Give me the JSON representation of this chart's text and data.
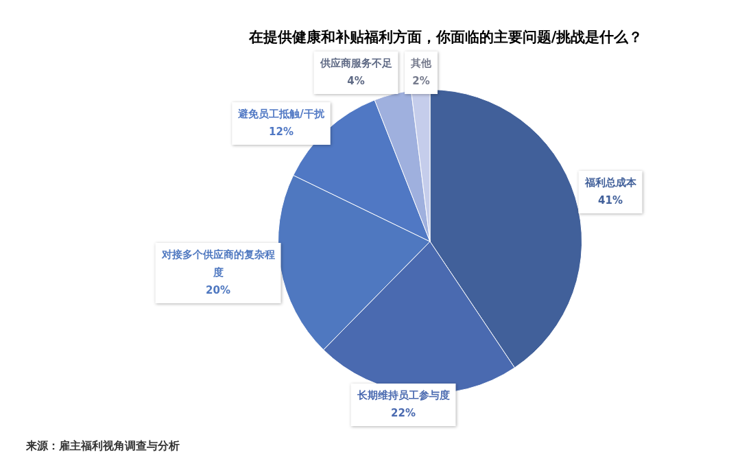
{
  "chart_data": {
    "type": "pie",
    "title": "在提供健康和补贴福利方面，你面临的主要问题/挑战是什么？",
    "categories": [
      "福利总成本",
      "长期维持员工参与度",
      "对接多个供应商的复杂程度",
      "避免员工抵触/干扰",
      "供应商服务不足",
      "其他"
    ],
    "values": [
      41,
      22,
      20,
      12,
      4,
      2
    ],
    "colors": [
      "#41609a",
      "#4a6ab0",
      "#4f78c0",
      "#5078c4",
      "#9fb0de",
      "#c5cdeb"
    ],
    "value_labels": [
      "41%",
      "22%",
      "20%",
      "12%",
      "4%",
      "2%"
    ],
    "legend": false,
    "annotations": [
      "来源：雇主福利视角调查与分析"
    ]
  }
}
